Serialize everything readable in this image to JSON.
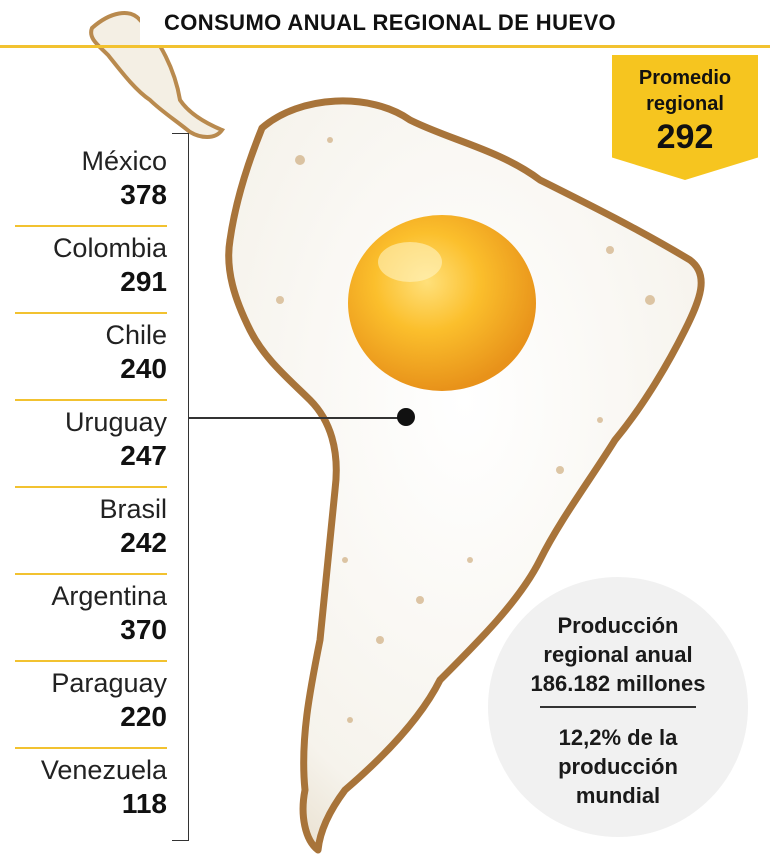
{
  "header": {
    "title": "CONSUMO ANUAL REGIONAL DE HUEVO"
  },
  "badge": {
    "label_line1": "Promedio",
    "label_line2": "regional",
    "value": "292"
  },
  "countries": [
    {
      "name": "México",
      "value": "378"
    },
    {
      "name": "Colombia",
      "value": "291"
    },
    {
      "name": "Chile",
      "value": "240"
    },
    {
      "name": "Uruguay",
      "value": "247"
    },
    {
      "name": "Brasil",
      "value": "242"
    },
    {
      "name": "Argentina",
      "value": "370"
    },
    {
      "name": "Paraguay",
      "value": "220"
    },
    {
      "name": "Venezuela",
      "value": "118"
    }
  ],
  "production": {
    "line1": "Producción",
    "line2": "regional anual",
    "line3": "186.182 millones",
    "pct": "12,2%",
    "pct_rest": " de la",
    "line5": "producción",
    "line6": "mundial"
  },
  "colors": {
    "accent": "#f2c230",
    "badge": "#f6c51f",
    "yolk": "#f4a81a",
    "egg_white": "#fbfaf5",
    "crisp_edge": "#a8743a",
    "circle": "#f1f1f1"
  },
  "icons": {
    "marker": "location-dot-icon"
  }
}
